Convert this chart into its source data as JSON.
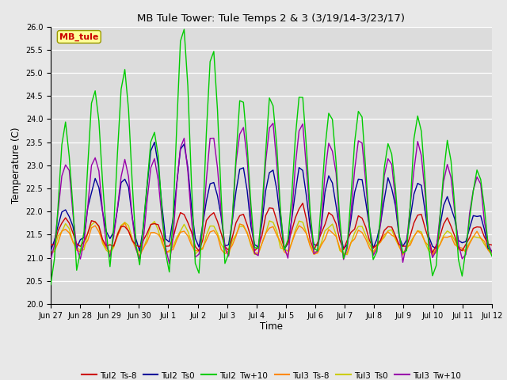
{
  "title": "MB Tule Tower: Tule Temps 2 & 3 (3/19/14-3/23/17)",
  "ylabel": "Temperature (C)",
  "xlabel": "Time",
  "ylim": [
    20.0,
    26.0
  ],
  "yticks": [
    20.0,
    20.5,
    21.0,
    21.5,
    22.0,
    22.5,
    23.0,
    23.5,
    24.0,
    24.5,
    25.0,
    25.5,
    26.0
  ],
  "xtick_labels": [
    "Jun 27",
    "Jun 28",
    "Jun 29",
    "Jun 30",
    "Jul 1",
    "Jul 2",
    "Jul 3",
    "Jul 4",
    "Jul 5",
    "Jul 6",
    "Jul 7",
    "Jul 8",
    "Jul 9",
    "Jul 10",
    "Jul 11",
    "Jul 12"
  ],
  "fig_bg_color": "#e8e8e8",
  "plot_bg_color": "#dcdcdc",
  "grid_color": "#ffffff",
  "series": {
    "Tul2_Ts-8": {
      "color": "#cc0000",
      "lw": 1.0
    },
    "Tul2_Ts0": {
      "color": "#000099",
      "lw": 1.0
    },
    "Tul2_Tw+10": {
      "color": "#00cc00",
      "lw": 1.0
    },
    "Tul3_Ts-8": {
      "color": "#ff8800",
      "lw": 1.0
    },
    "Tul3_Ts0": {
      "color": "#cccc00",
      "lw": 1.0
    },
    "Tul3_Tw+10": {
      "color": "#9900aa",
      "lw": 1.0
    }
  },
  "annotation_text": "MB_tule",
  "annotation_color": "#cc0000",
  "annotation_bg": "#ffff99",
  "annotation_border": "#999900"
}
